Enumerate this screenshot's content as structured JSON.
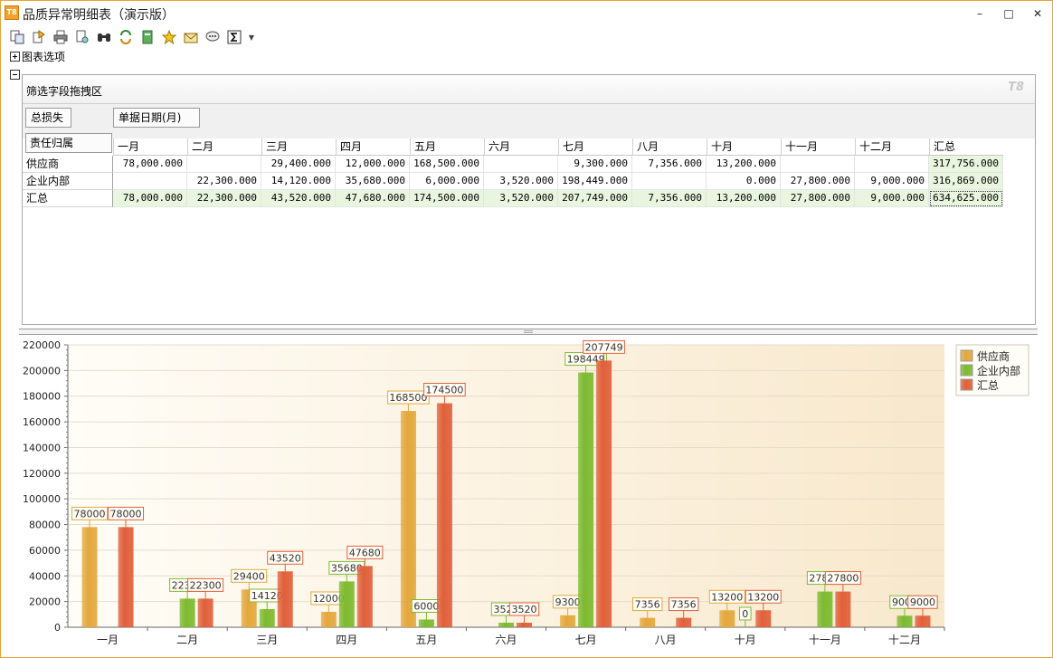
{
  "window": {
    "title": "品质异常明细表（演示版）",
    "icon": "T8",
    "minimize": "–",
    "maximize": "□",
    "close": "✕"
  },
  "toolbar": {
    "buttons": [
      "preview-icon",
      "export-icon",
      "print-icon",
      "page-setup-icon",
      "find-icon",
      "refresh-icon",
      "excel-icon",
      "favorite-icon",
      "mail-icon",
      "comment-icon",
      "sum-icon"
    ],
    "dropdown": "▼"
  },
  "options": {
    "chart_options_label": "图表选项"
  },
  "pivot": {
    "filter_area_label": "筛选字段拖拽区",
    "logo": "T8",
    "data_field": "总损失",
    "column_field": "单据日期(月)",
    "row_field": "责任归属",
    "columns": [
      "一月",
      "二月",
      "三月",
      "四月",
      "五月",
      "六月",
      "七月",
      "八月",
      "十月",
      "十一月",
      "十二月",
      "汇总"
    ],
    "rows": [
      {
        "label": "供应商",
        "values": [
          "78,000.000",
          "",
          "29,400.000",
          "12,000.000",
          "168,500.000",
          "",
          "9,300.000",
          "7,356.000",
          "13,200.000",
          "",
          "",
          "317,756.000"
        ]
      },
      {
        "label": "企业内部",
        "values": [
          "",
          "22,300.000",
          "14,120.000",
          "35,680.000",
          "6,000.000",
          "3,520.000",
          "198,449.000",
          "",
          "0.000",
          "27,800.000",
          "9,000.000",
          "316,869.000"
        ]
      },
      {
        "label": "汇总",
        "values": [
          "78,000.000",
          "22,300.000",
          "43,520.000",
          "47,680.000",
          "174,500.000",
          "3,520.000",
          "207,749.000",
          "7,356.000",
          "13,200.000",
          "27,800.000",
          "9,000.000",
          "634,625.000"
        ]
      }
    ]
  },
  "chart_data": {
    "type": "bar",
    "categories": [
      "一月",
      "二月",
      "三月",
      "四月",
      "五月",
      "六月",
      "七月",
      "八月",
      "十月",
      "十一月",
      "十二月"
    ],
    "series": [
      {
        "name": "供应商",
        "color": "#e3a83c",
        "values": [
          78000,
          null,
          29400,
          12000,
          168500,
          null,
          9300,
          7356,
          13200,
          null,
          null
        ]
      },
      {
        "name": "企业内部",
        "color": "#7dba2f",
        "values": [
          null,
          22300,
          14120,
          35680,
          6000,
          3520,
          198449,
          null,
          0,
          27800,
          9000
        ]
      },
      {
        "name": "汇总",
        "color": "#e0603a",
        "values": [
          78000,
          22300,
          43520,
          47680,
          174500,
          3520,
          207749,
          7356,
          13200,
          27800,
          9000
        ]
      }
    ],
    "ylim": [
      0,
      220000
    ],
    "yticks": [
      0,
      20000,
      40000,
      60000,
      80000,
      100000,
      120000,
      140000,
      160000,
      180000,
      200000,
      220000
    ],
    "grid": true,
    "legend_position": "top-right"
  }
}
